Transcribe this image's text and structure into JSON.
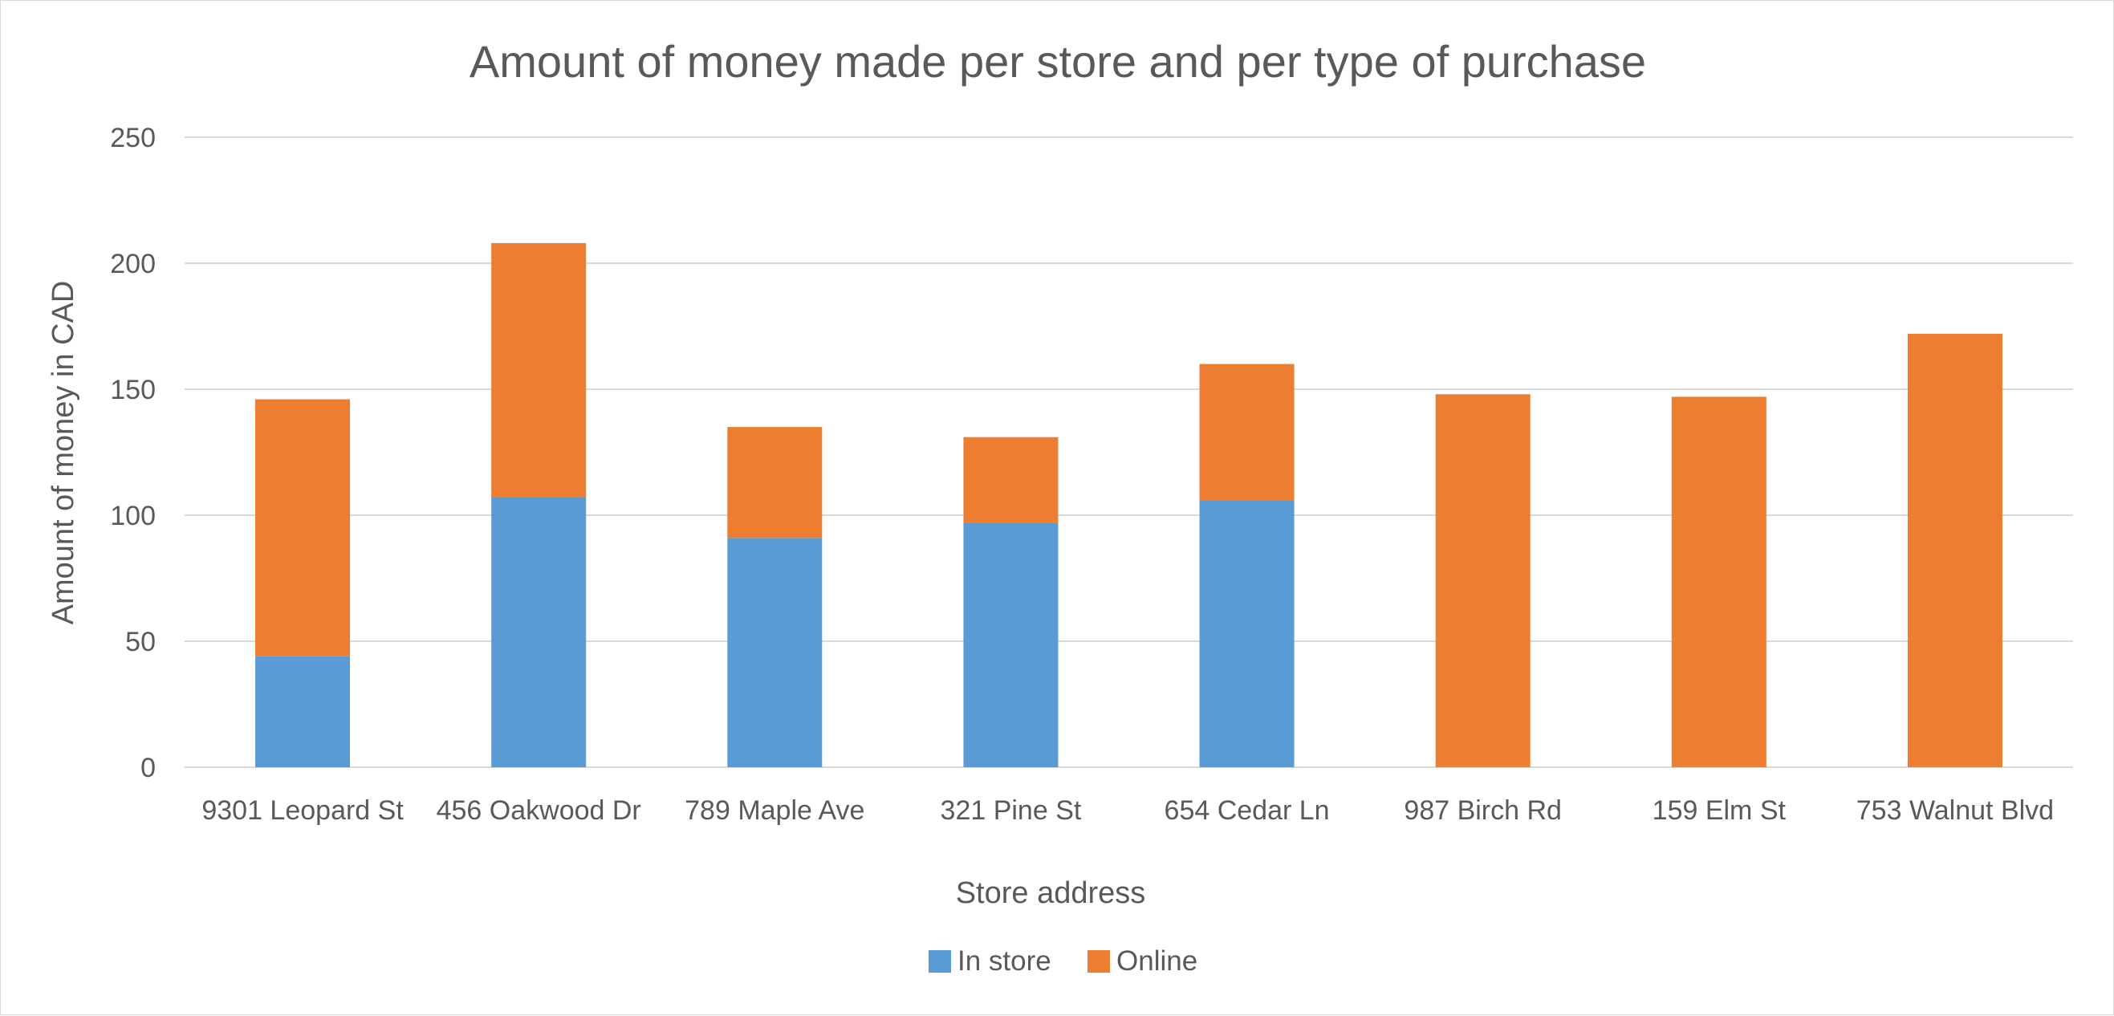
{
  "chart_data": {
    "type": "bar",
    "stacked": true,
    "title": "Amount of money made per store and per type of purchase",
    "xlabel": "Store address",
    "ylabel": "Amount of money in CAD",
    "categories": [
      "9301 Leopard St",
      "456 Oakwood Dr",
      "789 Maple Ave",
      "321 Pine St",
      "654 Cedar Ln",
      "987 Birch Rd",
      "159 Elm St",
      "753 Walnut Blvd"
    ],
    "series": [
      {
        "name": "In store",
        "color": "#5b9bd5",
        "values": [
          44,
          107,
          91,
          97,
          106,
          0,
          0,
          0
        ]
      },
      {
        "name": "Online",
        "color": "#ed7d31",
        "values": [
          102,
          101,
          44,
          34,
          54,
          148,
          147,
          172
        ]
      }
    ],
    "ylim": [
      0,
      250
    ],
    "yticks": [
      "0",
      "50",
      "100",
      "150",
      "200",
      "250"
    ],
    "grid": true,
    "legend_position": "bottom"
  }
}
